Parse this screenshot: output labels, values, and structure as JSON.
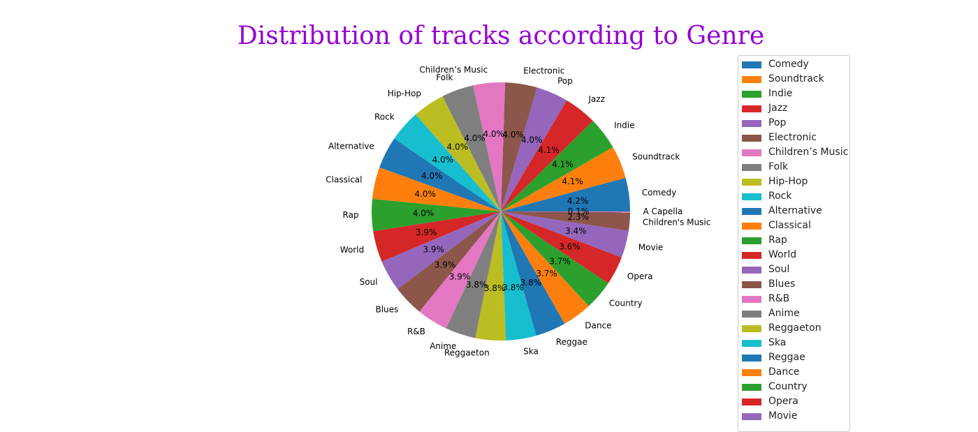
{
  "chart_data": {
    "type": "pie",
    "title": "Distribution of tracks according to Genre",
    "slices": [
      {
        "label": "Comedy",
        "pct_label": "4.2%",
        "value": 4.2,
        "color": "#1f77b4"
      },
      {
        "label": "Soundtrack",
        "pct_label": "4.1%",
        "value": 4.1,
        "color": "#ff7f0e"
      },
      {
        "label": "Indie",
        "pct_label": "4.1%",
        "value": 4.1,
        "color": "#2ca02c"
      },
      {
        "label": "Jazz",
        "pct_label": "4.1%",
        "value": 4.1,
        "color": "#d62728"
      },
      {
        "label": "Pop",
        "pct_label": "4.0%",
        "value": 4.0,
        "color": "#9467bd"
      },
      {
        "label": "Electronic",
        "pct_label": "4.0%",
        "value": 4.0,
        "color": "#8c564b"
      },
      {
        "label": "Children’s Music",
        "pct_label": "4.0%",
        "value": 4.0,
        "color": "#e377c2"
      },
      {
        "label": "Folk",
        "pct_label": "4.0%",
        "value": 4.0,
        "color": "#7f7f7f"
      },
      {
        "label": "Hip-Hop",
        "pct_label": "4.0%",
        "value": 4.0,
        "color": "#bcbd22"
      },
      {
        "label": "Rock",
        "pct_label": "4.0%",
        "value": 4.0,
        "color": "#17becf"
      },
      {
        "label": "Alternative",
        "pct_label": "4.0%",
        "value": 4.0,
        "color": "#1f77b4"
      },
      {
        "label": "Classical",
        "pct_label": "4.0%",
        "value": 4.0,
        "color": "#ff7f0e"
      },
      {
        "label": "Rap",
        "pct_label": "4.0%",
        "value": 4.0,
        "color": "#2ca02c"
      },
      {
        "label": "World",
        "pct_label": "3.9%",
        "value": 3.9,
        "color": "#d62728"
      },
      {
        "label": "Soul",
        "pct_label": "3.9%",
        "value": 3.9,
        "color": "#9467bd"
      },
      {
        "label": "Blues",
        "pct_label": "3.9%",
        "value": 3.9,
        "color": "#8c564b"
      },
      {
        "label": "R&B",
        "pct_label": "3.9%",
        "value": 3.9,
        "color": "#e377c2"
      },
      {
        "label": "Anime",
        "pct_label": "3.8%",
        "value": 3.8,
        "color": "#7f7f7f"
      },
      {
        "label": "Reggaeton",
        "pct_label": "3.8%",
        "value": 3.8,
        "color": "#bcbd22"
      },
      {
        "label": "Ska",
        "pct_label": "3.8%",
        "value": 3.8,
        "color": "#17becf"
      },
      {
        "label": "Reggae",
        "pct_label": "3.8%",
        "value": 3.8,
        "color": "#1f77b4"
      },
      {
        "label": "Dance",
        "pct_label": "3.7%",
        "value": 3.7,
        "color": "#ff7f0e"
      },
      {
        "label": "Country",
        "pct_label": "3.7%",
        "value": 3.7,
        "color": "#2ca02c"
      },
      {
        "label": "Opera",
        "pct_label": "3.6%",
        "value": 3.6,
        "color": "#d62728"
      },
      {
        "label": "Movie",
        "pct_label": "3.4%",
        "value": 3.4,
        "color": "#9467bd"
      },
      {
        "label": "Children's Music",
        "pct_label": "2.3%",
        "value": 2.3,
        "color": "#8c564b"
      },
      {
        "label": "A Capella",
        "pct_label": "0.1%",
        "value": 0.1,
        "color": "#e377c2"
      }
    ],
    "legend_position": "right",
    "legend_visible_entries": 25
  }
}
